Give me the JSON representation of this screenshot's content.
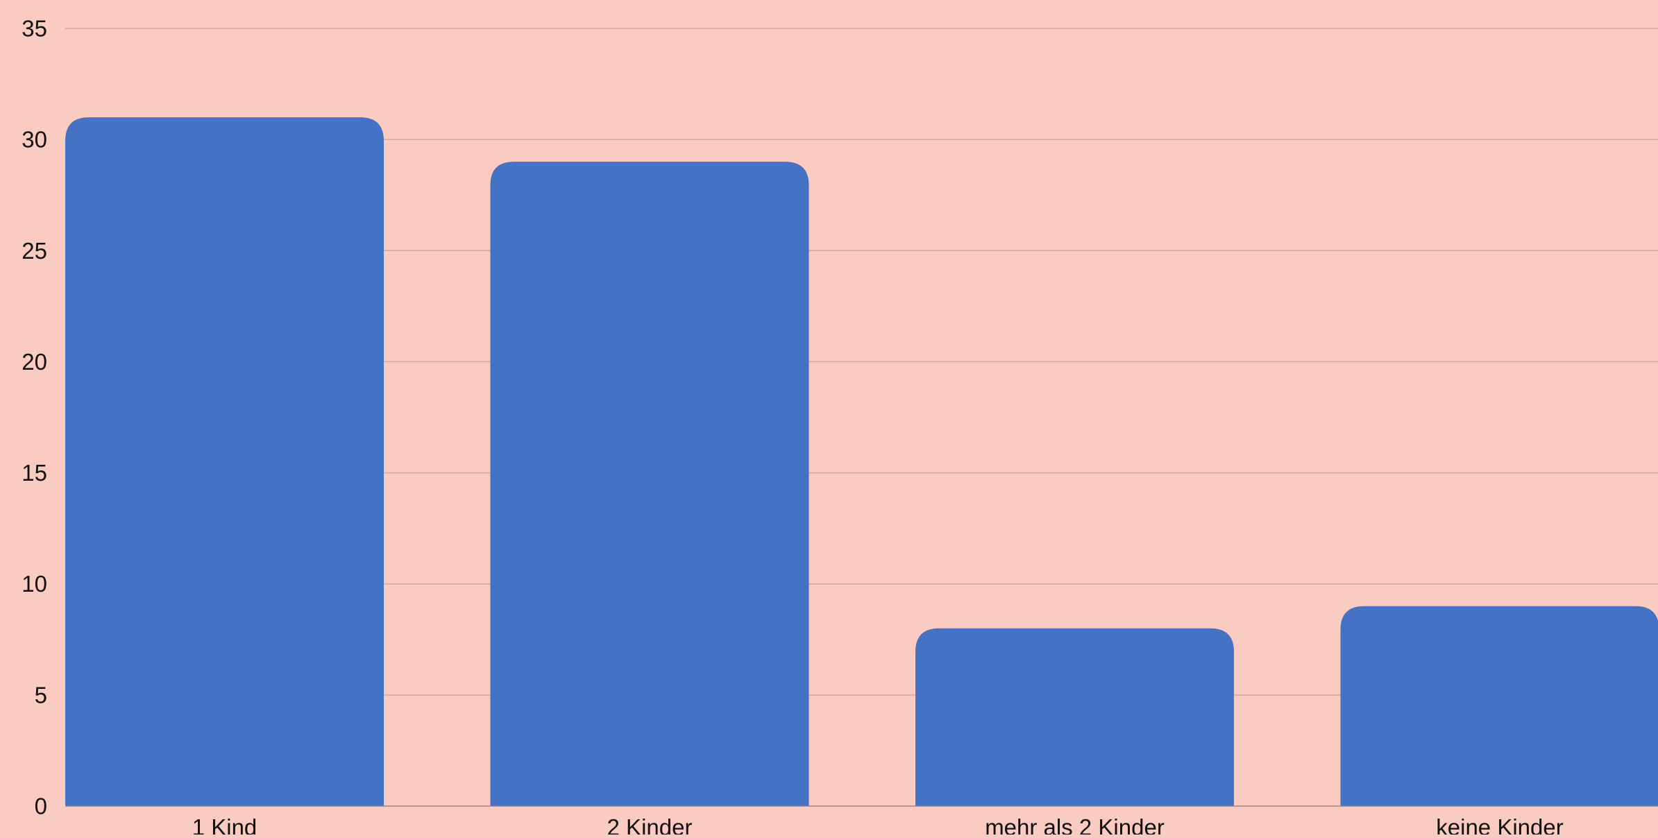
{
  "chart_data": {
    "type": "bar",
    "categories": [
      "1 Kind",
      "2 Kinder",
      "mehr als 2 Kinder",
      "keine Kinder"
    ],
    "values": [
      31,
      29,
      8,
      9
    ],
    "title": "",
    "xlabel": "",
    "ylabel": "",
    "ylim": [
      0,
      35
    ],
    "yticks": [
      0,
      5,
      10,
      15,
      20,
      25,
      30,
      35
    ],
    "grid": true,
    "legend": "none",
    "colors": {
      "background": "#FACBC0",
      "bar": "#4472C4",
      "grid": "#D4A39A",
      "axis": "#A88078",
      "text": "#111111"
    }
  }
}
